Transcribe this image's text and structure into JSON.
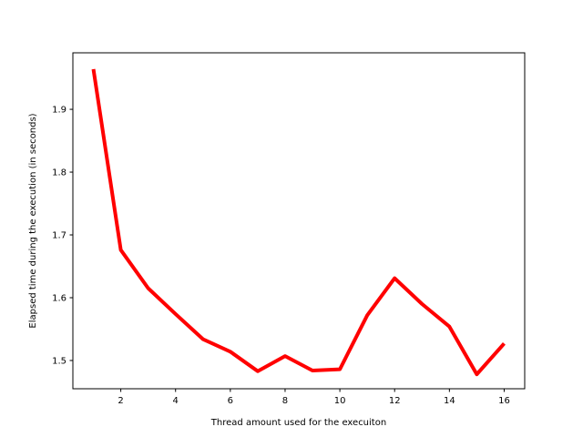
{
  "chart_data": {
    "type": "line",
    "title": "",
    "xlabel": "Thread amount used for the execuiton",
    "ylabel": "Elapsed time during the execution (in seconds)",
    "xlim": [
      0.25,
      16.75
    ],
    "ylim": [
      1.455,
      1.99
    ],
    "xticks": [
      2,
      4,
      6,
      8,
      10,
      12,
      14,
      16
    ],
    "xtick_labels": [
      "2",
      "4",
      "6",
      "8",
      "10",
      "12",
      "14",
      "16"
    ],
    "yticks": [
      1.5,
      1.6,
      1.7,
      1.8,
      1.9
    ],
    "ytick_labels": [
      "1.5",
      "1.6",
      "1.7",
      "1.8",
      "1.9"
    ],
    "grid": false,
    "legend": "none",
    "series": [
      {
        "color": "#ff0000",
        "x": [
          1,
          2,
          3,
          4,
          5,
          6,
          7,
          8,
          9,
          10,
          11,
          12,
          13,
          14,
          15,
          16
        ],
        "y": [
          1.964,
          1.676,
          1.615,
          1.574,
          1.534,
          1.514,
          1.483,
          1.507,
          1.484,
          1.486,
          1.572,
          1.631,
          1.59,
          1.554,
          1.478,
          1.527
        ]
      }
    ]
  }
}
